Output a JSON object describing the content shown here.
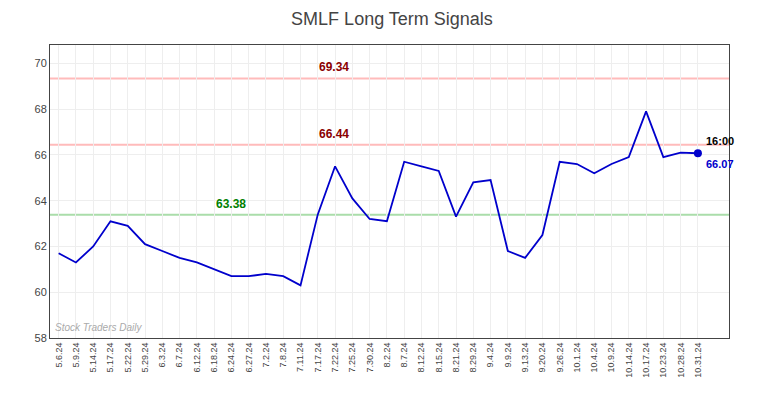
{
  "chart_data": {
    "type": "line",
    "title": "SMLF Long Term Signals",
    "categories": [
      "5.6.24",
      "5.9.24",
      "5.14.24",
      "5.17.24",
      "5.22.24",
      "5.29.24",
      "6.3.24",
      "6.7.24",
      "6.12.24",
      "6.18.24",
      "6.24.24",
      "6.27.24",
      "7.2.24",
      "7.8.24",
      "7.11.24",
      "7.17.24",
      "7.22.24",
      "7.25.24",
      "7.30.24",
      "8.2.24",
      "8.7.24",
      "8.12.24",
      "8.15.24",
      "8.21.24",
      "8.29.24",
      "9.4.24",
      "9.9.24",
      "9.13.24",
      "9.20.24",
      "9.26.24",
      "10.1.24",
      "10.4.24",
      "10.9.24",
      "10.14.24",
      "10.17.24",
      "10.23.24",
      "10.28.24",
      "10.31.24"
    ],
    "values": [
      61.7,
      61.3,
      62.0,
      63.1,
      62.9,
      62.1,
      61.8,
      61.5,
      61.3,
      61.0,
      60.7,
      60.7,
      60.8,
      60.7,
      60.3,
      63.4,
      65.5,
      64.1,
      63.2,
      63.1,
      65.7,
      65.5,
      65.3,
      63.3,
      64.8,
      64.9,
      61.8,
      61.5,
      62.5,
      65.7,
      65.6,
      65.2,
      65.6,
      65.9,
      67.9,
      65.9,
      66.1,
      66.07
    ],
    "color": "#0000cc",
    "ylim": [
      58,
      70.8
    ],
    "yticks": [
      58,
      60,
      62,
      64,
      66,
      68,
      70
    ],
    "grid": true,
    "reference_lines": [
      {
        "value": 69.34,
        "label": "69.34",
        "color": "#ffbbbb",
        "label_color": "darkred"
      },
      {
        "value": 66.44,
        "label": "66.44",
        "color": "#ffbbbb",
        "label_color": "darkred"
      },
      {
        "value": 63.38,
        "label": "63.38",
        "color": "#aaddaa",
        "label_color": "green"
      }
    ],
    "last_time": "16:00",
    "last_value_label": "66.07",
    "watermark": "Stock Traders Daily"
  }
}
